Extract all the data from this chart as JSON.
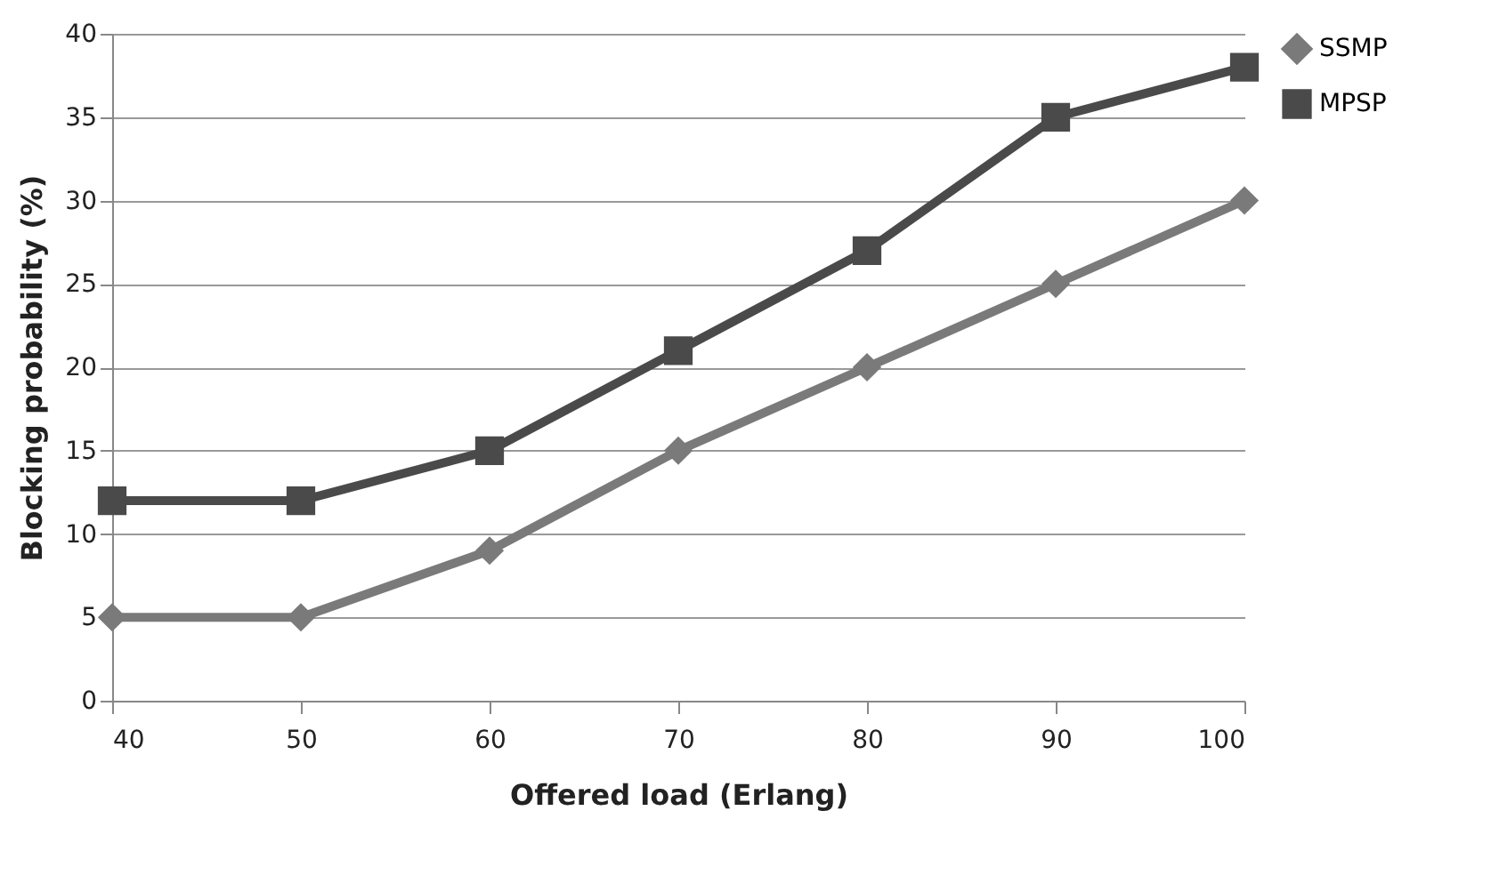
{
  "chart_data": {
    "type": "line",
    "xlabel": "Offered load (Erlang)",
    "ylabel": "Blocking probability (%)",
    "x": [
      40,
      50,
      60,
      70,
      80,
      90,
      100
    ],
    "series": [
      {
        "name": "SSMP",
        "color": "#7a7a7a",
        "marker": "diamond",
        "values": [
          5,
          5,
          9,
          15,
          20,
          25,
          30
        ]
      },
      {
        "name": "MPSP",
        "color": "#4a4a4a",
        "marker": "square",
        "values": [
          12,
          12,
          15,
          21,
          27,
          35,
          38
        ]
      }
    ],
    "xlim": [
      40,
      100
    ],
    "xticks": [
      40,
      50,
      60,
      70,
      80,
      90,
      100
    ],
    "ylim": [
      0,
      40
    ],
    "yticks": [
      0,
      5,
      10,
      15,
      20,
      25,
      30,
      35,
      40
    ],
    "grid": "y",
    "legend": "right",
    "line_style": "solid"
  }
}
